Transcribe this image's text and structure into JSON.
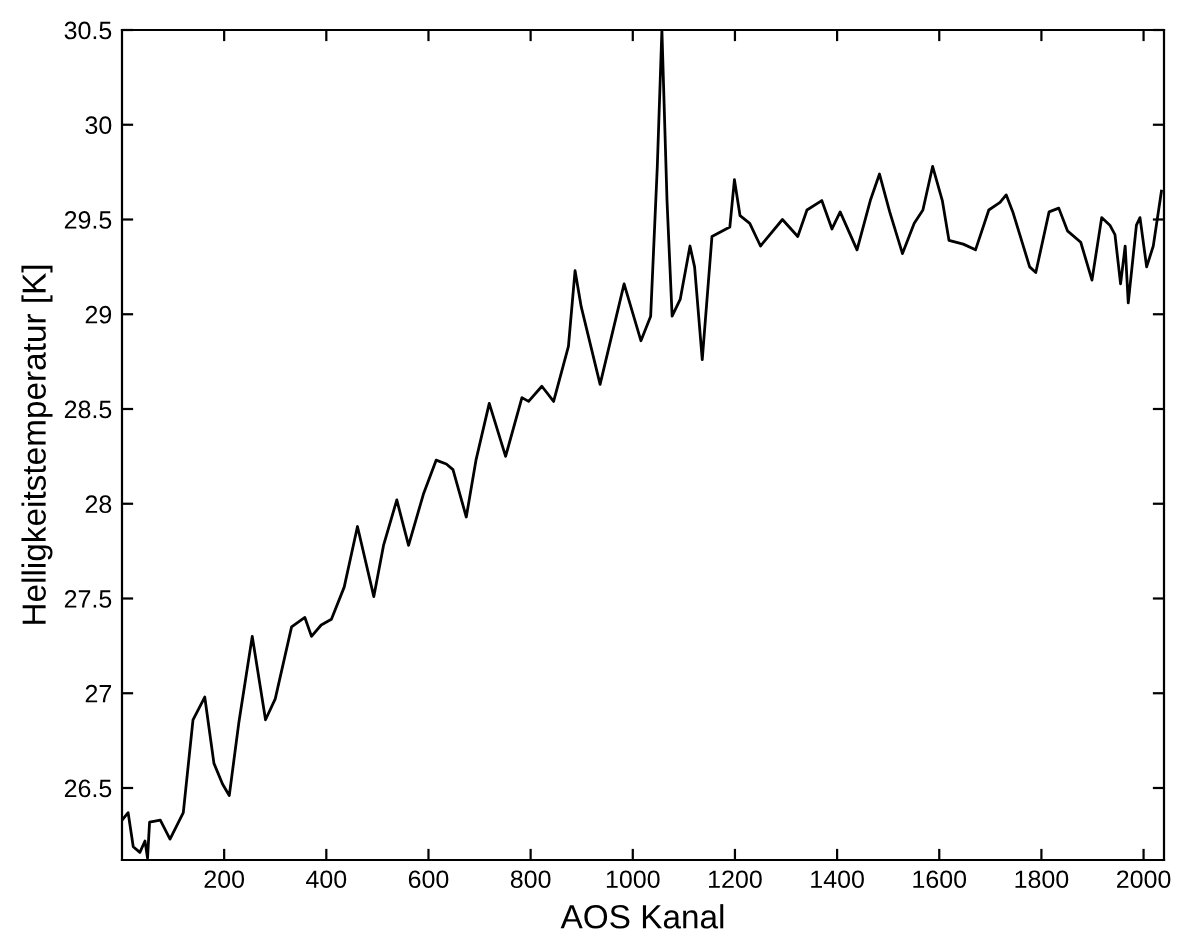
{
  "chart_data": {
    "type": "line",
    "xlabel": "AOS Kanal",
    "ylabel": "Helligkeitstemperatur [K]",
    "xlim": [
      0,
      2040
    ],
    "ylim": [
      26.12,
      30.5
    ],
    "xticks": [
      200,
      400,
      600,
      800,
      1000,
      1200,
      1400,
      1600,
      1800,
      2000
    ],
    "yticks": [
      26.5,
      27,
      27.5,
      28,
      28.5,
      29,
      29.5,
      30,
      30.5
    ],
    "grid": false,
    "legend": false,
    "series": [
      {
        "color": "#000000",
        "x": [
          0,
          12,
          22,
          35,
          45,
          50,
          54,
          75,
          94,
          107,
          120,
          139,
          162,
          180,
          197,
          210,
          229,
          255,
          281,
          300,
          332,
          358,
          371,
          390,
          410,
          435,
          461,
          493,
          512,
          538,
          561,
          590,
          615,
          635,
          648,
          674,
          693,
          719,
          751,
          783,
          796,
          822,
          845,
          874,
          887,
          899,
          936,
          983,
          1016,
          1035,
          1048,
          1057,
          1067,
          1077,
          1093,
          1112,
          1121,
          1136,
          1155,
          1190,
          1199,
          1210,
          1229,
          1250,
          1293,
          1323,
          1341,
          1370,
          1390,
          1406,
          1439,
          1465,
          1483,
          1503,
          1528,
          1551,
          1568,
          1587,
          1606,
          1619,
          1647,
          1671,
          1697,
          1719,
          1731,
          1744,
          1777,
          1789,
          1815,
          1834,
          1851,
          1877,
          1899,
          1918,
          1934,
          1944,
          1955,
          1964,
          1970,
          1986,
          1993,
          2006,
          2019,
          2035
        ],
        "values": [
          26.33,
          26.37,
          26.19,
          26.16,
          26.22,
          26.13,
          26.32,
          26.33,
          26.23,
          26.3,
          26.37,
          26.86,
          26.98,
          26.63,
          26.52,
          26.46,
          26.85,
          27.3,
          26.86,
          26.97,
          27.35,
          27.4,
          27.3,
          27.36,
          27.39,
          27.56,
          27.88,
          27.51,
          27.78,
          28.02,
          27.78,
          28.05,
          28.23,
          28.21,
          28.18,
          27.93,
          28.23,
          28.53,
          28.25,
          28.56,
          28.54,
          28.62,
          28.54,
          28.83,
          29.23,
          29.04,
          28.63,
          29.16,
          28.86,
          28.99,
          29.78,
          30.5,
          29.6,
          28.99,
          29.08,
          29.36,
          29.25,
          28.76,
          29.41,
          29.46,
          29.71,
          29.52,
          29.48,
          29.36,
          29.5,
          29.41,
          29.55,
          29.6,
          29.45,
          29.54,
          29.34,
          29.6,
          29.74,
          29.54,
          29.32,
          29.48,
          29.55,
          29.78,
          29.6,
          29.39,
          29.37,
          29.34,
          29.55,
          29.59,
          29.63,
          29.54,
          29.25,
          29.22,
          29.54,
          29.56,
          29.44,
          29.38,
          29.18,
          29.51,
          29.47,
          29.42,
          29.16,
          29.36,
          29.06,
          29.47,
          29.51,
          29.25,
          29.36,
          29.65
        ]
      }
    ]
  }
}
